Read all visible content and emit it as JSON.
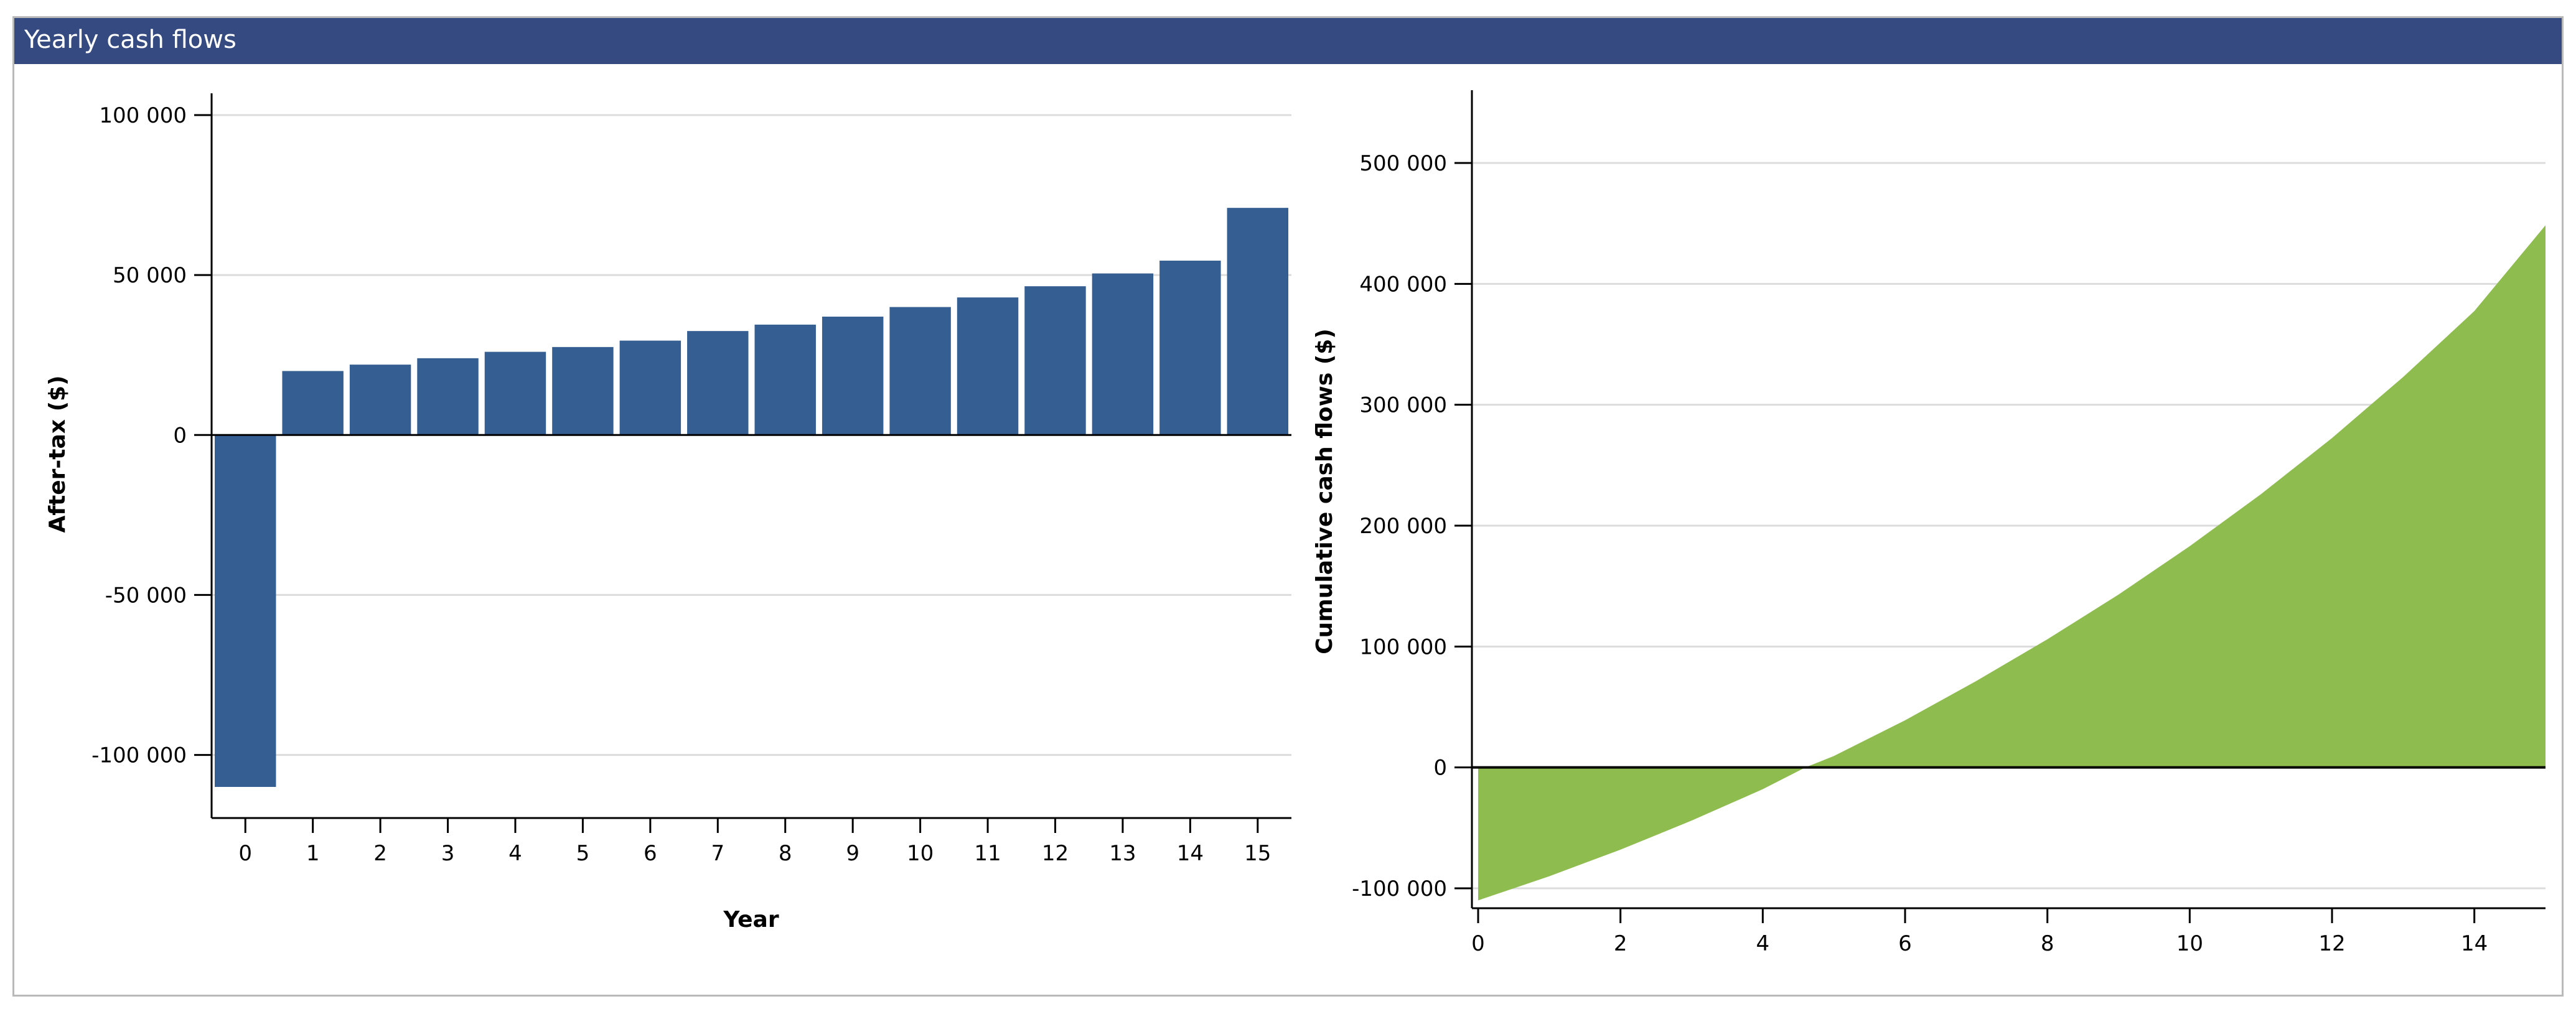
{
  "panel": {
    "title": "Yearly cash flows"
  },
  "colors": {
    "titlebar": "#354a80",
    "bar": "#355f93",
    "area": "#8fbc4f",
    "grid": "#dcdcdc",
    "axis": "#000000"
  },
  "chart_data": [
    {
      "type": "bar",
      "xlabel": "Year",
      "ylabel": "After-tax ($)",
      "categories": [
        "0",
        "1",
        "2",
        "3",
        "4",
        "5",
        "6",
        "7",
        "8",
        "9",
        "10",
        "11",
        "12",
        "13",
        "14",
        "15"
      ],
      "values": [
        -110000,
        20000,
        22000,
        24000,
        26000,
        27500,
        29500,
        32500,
        34500,
        37000,
        40000,
        43000,
        46500,
        50500,
        54500,
        71000
      ],
      "ylim": [
        -110000,
        100000
      ],
      "yticks": [
        100000,
        50000,
        0,
        -50000,
        -100000
      ],
      "ytick_labels": [
        "100 000",
        "50 000",
        "0",
        "-50 000",
        "-100 000"
      ],
      "grid": true
    },
    {
      "type": "area",
      "xlabel": "",
      "ylabel": "Cumulative cash flows ($)",
      "x": [
        0,
        1,
        2,
        3,
        4,
        4.6,
        5,
        6,
        7,
        8,
        9,
        10,
        11,
        12,
        13,
        14,
        15
      ],
      "y": [
        -110000,
        -90000,
        -68000,
        -44000,
        -18000,
        0,
        9500,
        39000,
        71500,
        106000,
        143000,
        183000,
        226000,
        272500,
        323000,
        377500,
        448500
      ],
      "xlim": [
        0,
        15
      ],
      "ylim": [
        -110000,
        560000
      ],
      "xticks": [
        0,
        2,
        4,
        6,
        8,
        10,
        12,
        14
      ],
      "xtick_labels": [
        "0",
        "2",
        "4",
        "6",
        "8",
        "10",
        "12",
        "14"
      ],
      "yticks": [
        500000,
        400000,
        300000,
        200000,
        100000,
        0,
        -100000
      ],
      "ytick_labels": [
        "500 000",
        "400 000",
        "300 000",
        "200 000",
        "100 000",
        "0",
        "-100 000"
      ],
      "grid": true
    }
  ]
}
